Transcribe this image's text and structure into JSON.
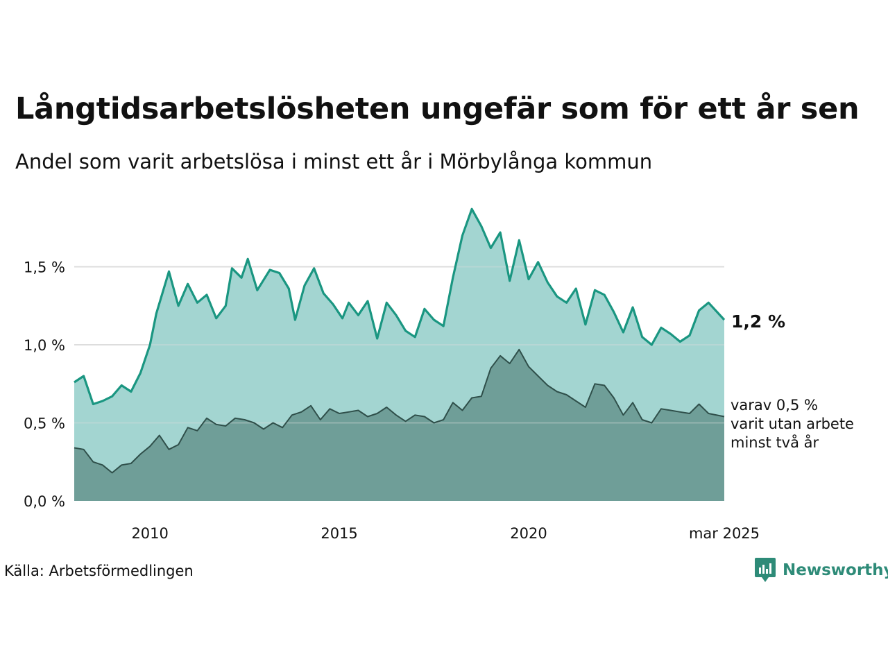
{
  "title": "Långtidsarbetslösheten ungefär som för ett år sen",
  "subtitle": "Andel som varit arbetslösa i minst ett år i Mörbylånga kommun",
  "source": "Källa: Arbetsförmedlingen",
  "logo_text": "Newsworthy",
  "colors": {
    "total_fill": "#a3d5d1",
    "total_line": "#1a9681",
    "long_fill": "#6f9e98",
    "long_line": "#2f4f4a",
    "grid": "#dddddd",
    "logo": "#2e8b78"
  },
  "chart_data": {
    "type": "area",
    "x_start": "2008-01",
    "x_end": "2025-03",
    "x_ticks": [
      {
        "label": "2010",
        "date": "2010-01"
      },
      {
        "label": "2015",
        "date": "2015-01"
      },
      {
        "label": "2020",
        "date": "2020-01"
      },
      {
        "label": "mar 2025",
        "date": "2025-03"
      }
    ],
    "y_ticks": [
      {
        "label": "0,0 %",
        "value": 0.0
      },
      {
        "label": "0,5 %",
        "value": 0.5
      },
      {
        "label": "1,0 %",
        "value": 1.0
      },
      {
        "label": "1,5 %",
        "value": 1.5
      }
    ],
    "ylim": [
      0,
      1.9
    ],
    "grid": true,
    "end_label_total": "1,2 %",
    "end_label_long": [
      "varav 0,5 %",
      "varit utan arbete",
      "minst två år"
    ],
    "series": [
      {
        "role": "total",
        "points": [
          [
            "2008-01",
            0.76
          ],
          [
            "2008-04",
            0.8
          ],
          [
            "2008-07",
            0.62
          ],
          [
            "2008-10",
            0.64
          ],
          [
            "2009-01",
            0.67
          ],
          [
            "2009-04",
            0.74
          ],
          [
            "2009-07",
            0.7
          ],
          [
            "2009-10",
            0.82
          ],
          [
            "2010-01",
            1.0
          ],
          [
            "2010-03",
            1.2
          ],
          [
            "2010-07",
            1.47
          ],
          [
            "2010-10",
            1.25
          ],
          [
            "2011-01",
            1.39
          ],
          [
            "2011-04",
            1.27
          ],
          [
            "2011-07",
            1.32
          ],
          [
            "2011-10",
            1.17
          ],
          [
            "2012-01",
            1.25
          ],
          [
            "2012-03",
            1.49
          ],
          [
            "2012-06",
            1.43
          ],
          [
            "2012-08",
            1.55
          ],
          [
            "2012-11",
            1.35
          ],
          [
            "2013-03",
            1.48
          ],
          [
            "2013-06",
            1.46
          ],
          [
            "2013-09",
            1.36
          ],
          [
            "2013-11",
            1.16
          ],
          [
            "2014-02",
            1.38
          ],
          [
            "2014-05",
            1.49
          ],
          [
            "2014-08",
            1.33
          ],
          [
            "2014-11",
            1.26
          ],
          [
            "2015-02",
            1.17
          ],
          [
            "2015-04",
            1.27
          ],
          [
            "2015-07",
            1.19
          ],
          [
            "2015-10",
            1.28
          ],
          [
            "2016-01",
            1.04
          ],
          [
            "2016-04",
            1.27
          ],
          [
            "2016-07",
            1.19
          ],
          [
            "2016-10",
            1.09
          ],
          [
            "2017-01",
            1.05
          ],
          [
            "2017-04",
            1.23
          ],
          [
            "2017-07",
            1.16
          ],
          [
            "2017-10",
            1.12
          ],
          [
            "2018-01",
            1.43
          ],
          [
            "2018-04",
            1.7
          ],
          [
            "2018-07",
            1.87
          ],
          [
            "2018-10",
            1.76
          ],
          [
            "2019-01",
            1.62
          ],
          [
            "2019-04",
            1.72
          ],
          [
            "2019-07",
            1.41
          ],
          [
            "2019-10",
            1.67
          ],
          [
            "2020-01",
            1.42
          ],
          [
            "2020-04",
            1.53
          ],
          [
            "2020-07",
            1.4
          ],
          [
            "2020-10",
            1.31
          ],
          [
            "2021-01",
            1.27
          ],
          [
            "2021-04",
            1.36
          ],
          [
            "2021-07",
            1.13
          ],
          [
            "2021-10",
            1.35
          ],
          [
            "2022-01",
            1.32
          ],
          [
            "2022-04",
            1.21
          ],
          [
            "2022-07",
            1.08
          ],
          [
            "2022-10",
            1.24
          ],
          [
            "2023-01",
            1.05
          ],
          [
            "2023-04",
            1.0
          ],
          [
            "2023-07",
            1.11
          ],
          [
            "2023-10",
            1.07
          ],
          [
            "2024-01",
            1.02
          ],
          [
            "2024-04",
            1.06
          ],
          [
            "2024-07",
            1.22
          ],
          [
            "2024-10",
            1.27
          ],
          [
            "2025-03",
            1.16
          ]
        ]
      },
      {
        "role": "long",
        "points": [
          [
            "2008-01",
            0.34
          ],
          [
            "2008-04",
            0.33
          ],
          [
            "2008-07",
            0.25
          ],
          [
            "2008-10",
            0.23
          ],
          [
            "2009-01",
            0.18
          ],
          [
            "2009-04",
            0.23
          ],
          [
            "2009-07",
            0.24
          ],
          [
            "2009-10",
            0.3
          ],
          [
            "2010-01",
            0.35
          ],
          [
            "2010-04",
            0.42
          ],
          [
            "2010-07",
            0.33
          ],
          [
            "2010-10",
            0.36
          ],
          [
            "2011-01",
            0.47
          ],
          [
            "2011-04",
            0.45
          ],
          [
            "2011-07",
            0.53
          ],
          [
            "2011-10",
            0.49
          ],
          [
            "2012-01",
            0.48
          ],
          [
            "2012-04",
            0.53
          ],
          [
            "2012-07",
            0.52
          ],
          [
            "2012-10",
            0.5
          ],
          [
            "2013-01",
            0.46
          ],
          [
            "2013-04",
            0.5
          ],
          [
            "2013-07",
            0.47
          ],
          [
            "2013-10",
            0.55
          ],
          [
            "2014-01",
            0.57
          ],
          [
            "2014-04",
            0.61
          ],
          [
            "2014-07",
            0.52
          ],
          [
            "2014-10",
            0.59
          ],
          [
            "2015-01",
            0.56
          ],
          [
            "2015-04",
            0.57
          ],
          [
            "2015-07",
            0.58
          ],
          [
            "2015-10",
            0.54
          ],
          [
            "2016-01",
            0.56
          ],
          [
            "2016-04",
            0.6
          ],
          [
            "2016-07",
            0.55
          ],
          [
            "2016-10",
            0.51
          ],
          [
            "2017-01",
            0.55
          ],
          [
            "2017-04",
            0.54
          ],
          [
            "2017-07",
            0.5
          ],
          [
            "2017-10",
            0.52
          ],
          [
            "2018-01",
            0.63
          ],
          [
            "2018-04",
            0.58
          ],
          [
            "2018-07",
            0.66
          ],
          [
            "2018-10",
            0.67
          ],
          [
            "2019-01",
            0.85
          ],
          [
            "2019-04",
            0.93
          ],
          [
            "2019-07",
            0.88
          ],
          [
            "2019-10",
            0.97
          ],
          [
            "2020-01",
            0.86
          ],
          [
            "2020-04",
            0.8
          ],
          [
            "2020-07",
            0.74
          ],
          [
            "2020-10",
            0.7
          ],
          [
            "2021-01",
            0.68
          ],
          [
            "2021-04",
            0.64
          ],
          [
            "2021-07",
            0.6
          ],
          [
            "2021-10",
            0.75
          ],
          [
            "2022-01",
            0.74
          ],
          [
            "2022-04",
            0.66
          ],
          [
            "2022-07",
            0.55
          ],
          [
            "2022-10",
            0.63
          ],
          [
            "2023-01",
            0.52
          ],
          [
            "2023-04",
            0.5
          ],
          [
            "2023-07",
            0.59
          ],
          [
            "2023-10",
            0.58
          ],
          [
            "2024-01",
            0.57
          ],
          [
            "2024-04",
            0.56
          ],
          [
            "2024-07",
            0.62
          ],
          [
            "2024-10",
            0.56
          ],
          [
            "2025-03",
            0.54
          ]
        ]
      }
    ]
  }
}
